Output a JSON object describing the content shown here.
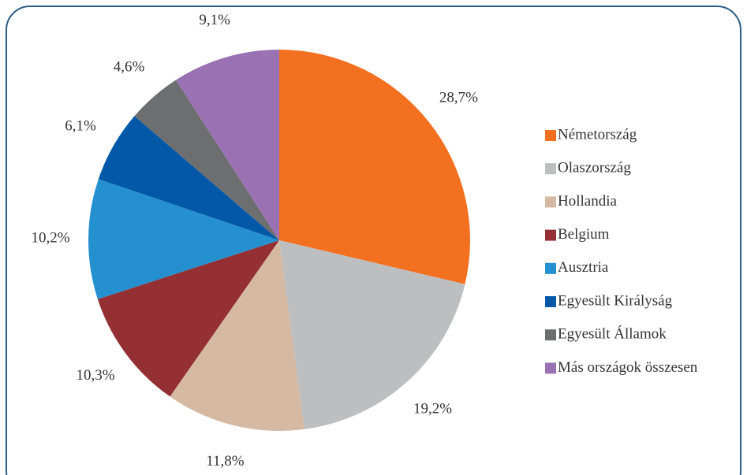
{
  "chart_data": {
    "type": "pie",
    "categories": [
      "Németország",
      "Olaszország",
      "Hollandia",
      "Belgium",
      "Ausztria",
      "Egyesült Királyság",
      "Egyesült Államok",
      "Más országok összesen"
    ],
    "values": [
      28.7,
      19.2,
      11.8,
      10.3,
      10.2,
      6.1,
      4.6,
      9.1
    ],
    "value_labels": [
      "28,7%",
      "19,2%",
      "11,8%",
      "10,3%",
      "10,2%",
      "6,1%",
      "4,6%",
      "9,1%"
    ],
    "colors": [
      "#f37021",
      "#bdbec0",
      "#d5b9a3",
      "#943034",
      "#2490d0",
      "#0359a8",
      "#6d6e70",
      "#9a72b3"
    ],
    "legend": "right"
  }
}
